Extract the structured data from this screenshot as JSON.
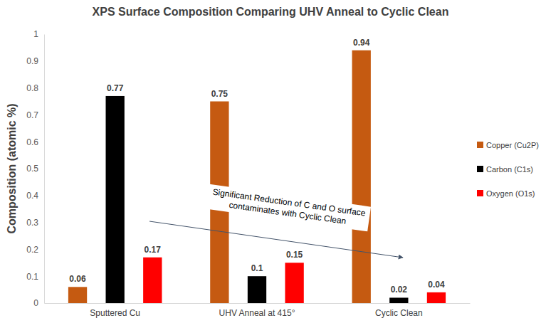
{
  "chart_data": {
    "type": "bar",
    "title": "XPS Surface Composition Comparing UHV Anneal to Cyclic Clean",
    "y_label": "Composition (atomic %)",
    "categories": [
      "Sputtered Cu",
      "UHV Anneal at 415°",
      "Cyclic Clean"
    ],
    "series": [
      {
        "name": "Copper (Cu2P)",
        "color": "#c55a11",
        "values": [
          0.06,
          0.75,
          0.94
        ]
      },
      {
        "name": "Carbon (C1s)",
        "color": "#000000",
        "values": [
          0.77,
          0.1,
          0.02
        ]
      },
      {
        "name": "Oxygen (O1s)",
        "color": "#ff0000",
        "values": [
          0.17,
          0.15,
          0.04
        ]
      }
    ],
    "ylim": [
      0,
      1
    ],
    "yticks": [
      0,
      0.1,
      0.2,
      0.3,
      0.4,
      0.5,
      0.6,
      0.7,
      0.8,
      0.9,
      1
    ],
    "grid": false,
    "legend": "right",
    "data_labels": true,
    "annotations": [
      {
        "text": "Significant Reduction of C and O surface contaminates with Cyclic Clean"
      }
    ]
  }
}
